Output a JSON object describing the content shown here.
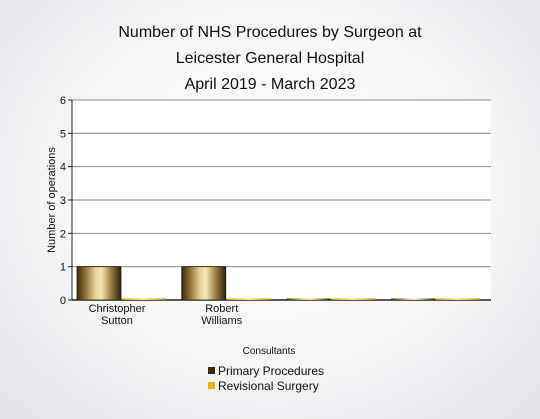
{
  "chart_data": {
    "type": "bar",
    "title_lines": [
      "Number of NHS Procedures by Surgeon at",
      "Leicester General Hospital",
      "April 2019 - March 2023"
    ],
    "xlabel": "Consultants",
    "ylabel": "Number of operations",
    "ylim": [
      0,
      6
    ],
    "yticks": [
      "0",
      "1",
      "2",
      "3",
      "4",
      "5",
      "6"
    ],
    "grid": true,
    "legend_position": "bottom",
    "categories": [
      {
        "line1": "Christopher",
        "line2": "Sutton"
      },
      {
        "line1": "Robert",
        "line2": "Williams"
      },
      {
        "line1": "",
        "line2": ""
      },
      {
        "line1": "",
        "line2": ""
      }
    ],
    "series": [
      {
        "name": "Primary Procedures",
        "values": [
          1,
          1,
          0,
          0
        ],
        "color": "#3a2a12"
      },
      {
        "name": "Revisional Surgery",
        "values": [
          0,
          0,
          0,
          0
        ],
        "color": "#e6b800"
      }
    ]
  }
}
